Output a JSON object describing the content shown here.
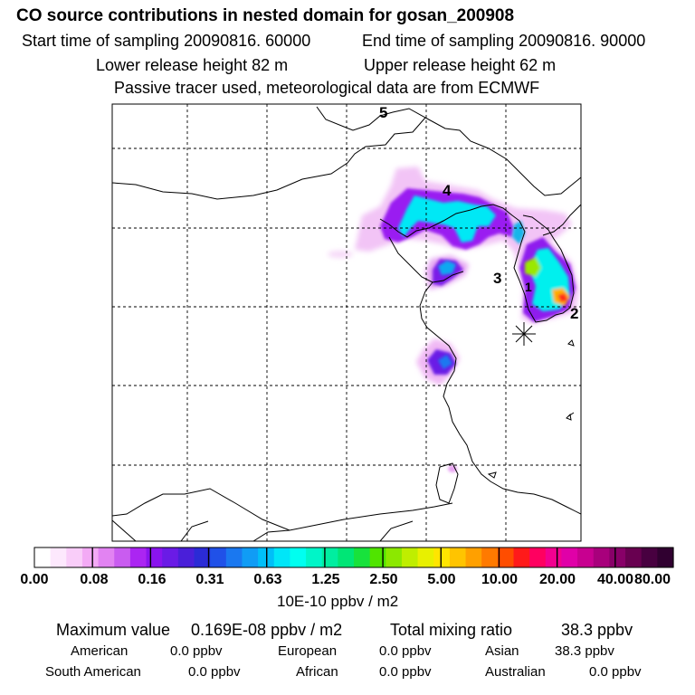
{
  "header": {
    "title": "CO  source contributions in nested domain for gosan_200908",
    "start_time": "Start time of sampling 20090816. 60000",
    "end_time": "End time of sampling 20090816. 90000",
    "lower_height": "Lower release height   82 m",
    "upper_height": "Upper release height   62 m",
    "tracer_note": "Passive tracer used, meteorological data are from ECMWF"
  },
  "map": {
    "region_labels": [
      "5",
      "4",
      "3",
      "2",
      "1"
    ],
    "station_marker": "sampling site"
  },
  "colorbar": {
    "colors": [
      "#ffffff",
      "#fde8fd",
      "#f9cdf9",
      "#f3aaf5",
      "#e283f2",
      "#c95cf0",
      "#ab25f2",
      "#8a14ee",
      "#6a1be6",
      "#4a1fd9",
      "#2b2bd6",
      "#2051e8",
      "#1a78f0",
      "#109cf5",
      "#00bff8",
      "#00e6f8",
      "#00fff0",
      "#00f5c8",
      "#00eea0",
      "#00e676",
      "#18e23c",
      "#50e400",
      "#8ce800",
      "#bfee00",
      "#e8f000",
      "#ffe500",
      "#ffc400",
      "#ffa000",
      "#ff7a00",
      "#ff4d00",
      "#ff1a1a",
      "#ff0060",
      "#f20090",
      "#e000a8",
      "#c80090",
      "#a8007c",
      "#880068",
      "#680050",
      "#480040",
      "#300030"
    ],
    "labels": [
      "0.00",
      "0.08",
      "0.16",
      "0.31",
      "0.63",
      "1.25",
      "2.50",
      "5.00",
      "10.00",
      "20.00",
      "40.00",
      "80.00"
    ],
    "unit": "10E-10 ppbv / m2"
  },
  "stats": {
    "max_label": "Maximum value",
    "max_value": "0.169E-08 ppbv / m2",
    "total_label": "Total mixing ratio",
    "total_value": "38.3 ppbv",
    "american_label": "American",
    "american_value": "0.0 ppbv",
    "european_label": "European",
    "european_value": "0.0 ppbv",
    "asian_label": "Asian",
    "asian_value": "38.3 ppbv",
    "south_american_label": "South American",
    "south_american_value": "0.0 ppbv",
    "african_label": "African",
    "african_value": "0.0 ppbv",
    "australian_label": "Australian",
    "australian_value": "0.0 ppbv"
  }
}
